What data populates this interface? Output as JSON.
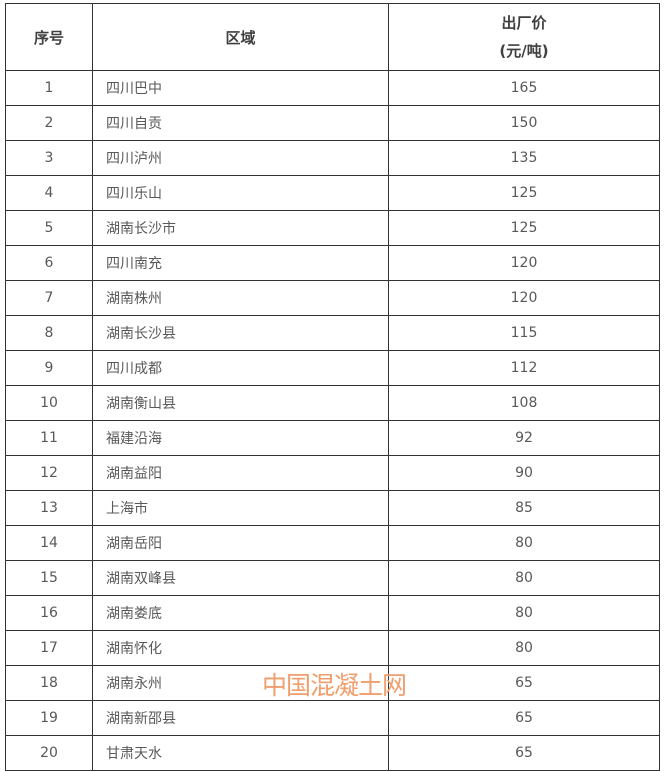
{
  "table": {
    "headers": {
      "index": "序号",
      "region": "区域",
      "price_line1": "出厂价",
      "price_line2": "(元/吨)"
    },
    "rows": [
      {
        "index": "1",
        "region": "四川巴中",
        "price": "165"
      },
      {
        "index": "2",
        "region": "四川自贡",
        "price": "150"
      },
      {
        "index": "3",
        "region": "四川泸州",
        "price": "135"
      },
      {
        "index": "4",
        "region": "四川乐山",
        "price": "125"
      },
      {
        "index": "5",
        "region": "湖南长沙市",
        "price": "125"
      },
      {
        "index": "6",
        "region": "四川南充",
        "price": "120"
      },
      {
        "index": "7",
        "region": "湖南株州",
        "price": "120"
      },
      {
        "index": "8",
        "region": "湖南长沙县",
        "price": "115"
      },
      {
        "index": "9",
        "region": "四川成都",
        "price": "112"
      },
      {
        "index": "10",
        "region": "湖南衡山县",
        "price": "108"
      },
      {
        "index": "11",
        "region": "福建沿海",
        "price": "92"
      },
      {
        "index": "12",
        "region": "湖南益阳",
        "price": "90"
      },
      {
        "index": "13",
        "region": "上海市",
        "price": "85"
      },
      {
        "index": "14",
        "region": "湖南岳阳",
        "price": "80"
      },
      {
        "index": "15",
        "region": "湖南双峰县",
        "price": "80"
      },
      {
        "index": "16",
        "region": "湖南娄底",
        "price": "80"
      },
      {
        "index": "17",
        "region": "湖南怀化",
        "price": "80"
      },
      {
        "index": "18",
        "region": "湖南永州",
        "price": "65"
      },
      {
        "index": "19",
        "region": "湖南新邵县",
        "price": "65"
      },
      {
        "index": "20",
        "region": "甘肃天水",
        "price": "65"
      }
    ]
  },
  "watermark": {
    "text": "中国混凝土网"
  },
  "colors": {
    "background": "#ffffff",
    "border": "#333333",
    "header_text": "#3f3f3f",
    "cell_text": "#595959",
    "watermark": "#f09e6e"
  }
}
